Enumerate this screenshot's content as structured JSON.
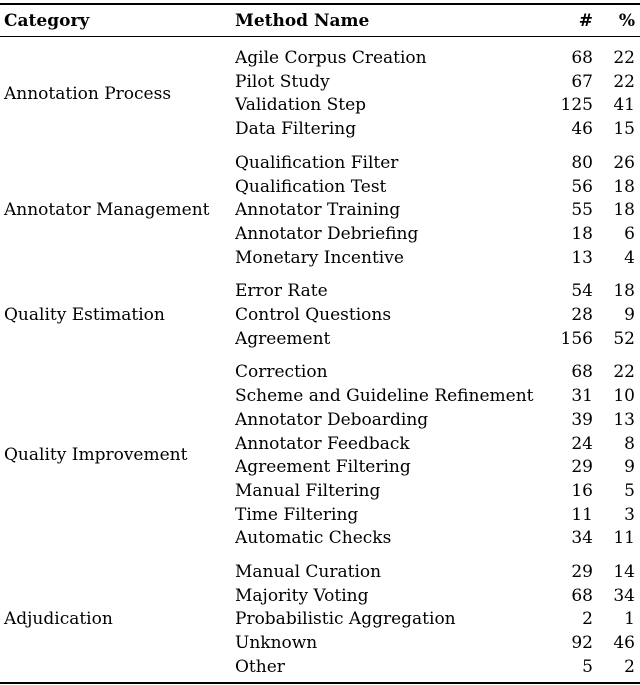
{
  "table": {
    "columns": {
      "category": "Category",
      "method": "Method Name",
      "count": "#",
      "percent": "%"
    },
    "groups": [
      {
        "category": "Annotation Process",
        "rows": [
          {
            "method": "Agile Corpus Creation",
            "count": "68",
            "percent": "22"
          },
          {
            "method": "Pilot Study",
            "count": "67",
            "percent": "22"
          },
          {
            "method": "Validation Step",
            "count": "125",
            "percent": "41"
          },
          {
            "method": "Data Filtering",
            "count": "46",
            "percent": "15"
          }
        ]
      },
      {
        "category": "Annotator Management",
        "rows": [
          {
            "method": "Qualification Filter",
            "count": "80",
            "percent": "26"
          },
          {
            "method": "Qualification Test",
            "count": "56",
            "percent": "18"
          },
          {
            "method": "Annotator Training",
            "count": "55",
            "percent": "18"
          },
          {
            "method": "Annotator Debriefing",
            "count": "18",
            "percent": "6"
          },
          {
            "method": "Monetary Incentive",
            "count": "13",
            "percent": "4"
          }
        ]
      },
      {
        "category": "Quality Estimation",
        "rows": [
          {
            "method": "Error Rate",
            "count": "54",
            "percent": "18"
          },
          {
            "method": "Control Questions",
            "count": "28",
            "percent": "9"
          },
          {
            "method": "Agreement",
            "count": "156",
            "percent": "52"
          }
        ]
      },
      {
        "category": "Quality Improvement",
        "rows": [
          {
            "method": "Correction",
            "count": "68",
            "percent": "22"
          },
          {
            "method": "Scheme and Guideline Refinement",
            "count": "31",
            "percent": "10"
          },
          {
            "method": "Annotator Deboarding",
            "count": "39",
            "percent": "13"
          },
          {
            "method": "Annotator Feedback",
            "count": "24",
            "percent": "8"
          },
          {
            "method": "Agreement Filtering",
            "count": "29",
            "percent": "9"
          },
          {
            "method": "Manual Filtering",
            "count": "16",
            "percent": "5"
          },
          {
            "method": "Time Filtering",
            "count": "11",
            "percent": "3"
          },
          {
            "method": "Automatic Checks",
            "count": "34",
            "percent": "11"
          }
        ]
      },
      {
        "category": "Adjudication",
        "rows": [
          {
            "method": "Manual Curation",
            "count": "29",
            "percent": "14"
          },
          {
            "method": "Majority Voting",
            "count": "68",
            "percent": "34"
          },
          {
            "method": "Probabilistic Aggregation",
            "count": "2",
            "percent": "1"
          },
          {
            "method": "Unknown",
            "count": "92",
            "percent": "46"
          },
          {
            "method": "Other",
            "count": "5",
            "percent": "2"
          }
        ]
      }
    ],
    "colors": {
      "text": "#000000",
      "background": "#ffffff",
      "rule": "#000000"
    }
  }
}
